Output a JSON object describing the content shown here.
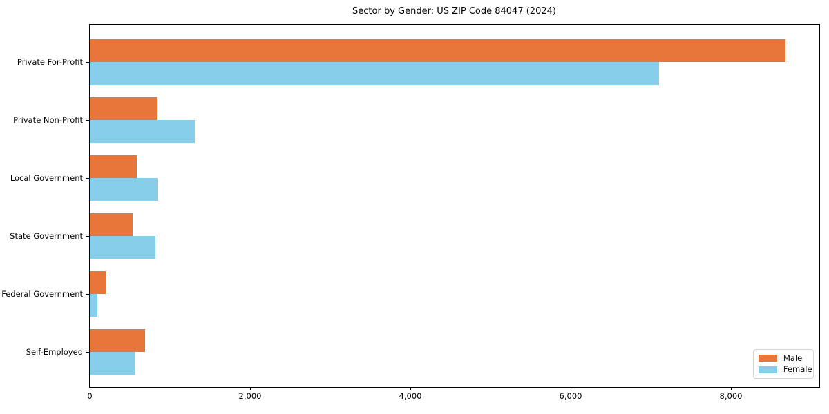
{
  "figure": {
    "background": "#ffffff"
  },
  "chart_data": {
    "type": "bar",
    "orientation": "horizontal",
    "title": "Sector by Gender: US ZIP Code 84047 (2024)",
    "xlabel": "",
    "ylabel": "",
    "grid": false,
    "categories": [
      "Private For-Profit",
      "Private Non-Profit",
      "Local Government",
      "State Government",
      "Federal Government",
      "Self-Employed"
    ],
    "series": [
      {
        "name": "Male",
        "color": "#e8763a",
        "values": [
          8680,
          840,
          590,
          535,
          200,
          690
        ]
      },
      {
        "name": "Female",
        "color": "#87ceeb",
        "values": [
          7100,
          1310,
          845,
          820,
          95,
          570
        ]
      }
    ],
    "xlim": [
      0,
      9100
    ],
    "x_ticks": [
      {
        "value": 0,
        "label": "0"
      },
      {
        "value": 2000,
        "label": "2,000"
      },
      {
        "value": 4000,
        "label": "4,000"
      },
      {
        "value": 6000,
        "label": "6,000"
      },
      {
        "value": 8000,
        "label": "8,000"
      }
    ],
    "legend": {
      "position": "lower-right",
      "entries": [
        "Male",
        "Female"
      ]
    },
    "colors": {
      "spine": "#000000",
      "text": "#000000",
      "legend_border": "#d4d4d4"
    }
  }
}
